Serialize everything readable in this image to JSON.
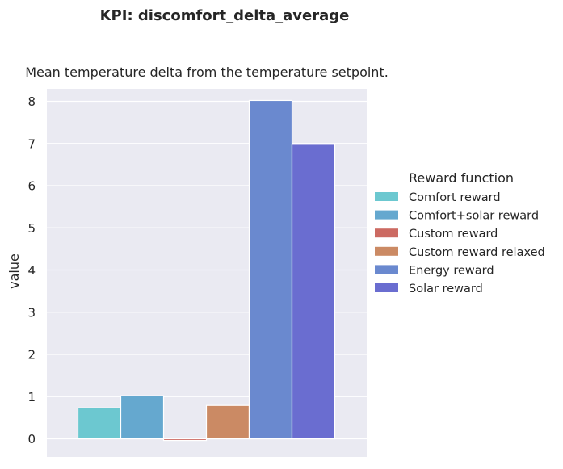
{
  "chart_data": {
    "type": "bar",
    "title": "KPI: discomfort_delta_average",
    "subtitle": "Mean temperature delta from the temperature setpoint.",
    "xlabel": "",
    "ylabel": "value",
    "ylim": [
      -0.45,
      8.2
    ],
    "yticks": [
      0,
      1,
      2,
      3,
      4,
      5,
      6,
      7,
      8
    ],
    "grid": true,
    "legend_position": "right",
    "legend_title": "Reward function",
    "series": [
      {
        "name": "Comfort reward",
        "value": 0.73,
        "color": "#6cc8d0"
      },
      {
        "name": "Comfort+solar reward",
        "value": 1.02,
        "color": "#65a8cf"
      },
      {
        "name": "Custom reward",
        "value": -0.04,
        "color": "#cc6a62"
      },
      {
        "name": "Custom reward relaxed",
        "value": 0.79,
        "color": "#cb8a64"
      },
      {
        "name": "Energy reward",
        "value": 8.02,
        "color": "#6a89cf"
      },
      {
        "name": "Solar reward",
        "value": 6.98,
        "color": "#6a6dd0"
      }
    ]
  },
  "colors": {
    "plot_background": "#eaeaf2",
    "grid": "#ffffff",
    "text": "#262626"
  }
}
